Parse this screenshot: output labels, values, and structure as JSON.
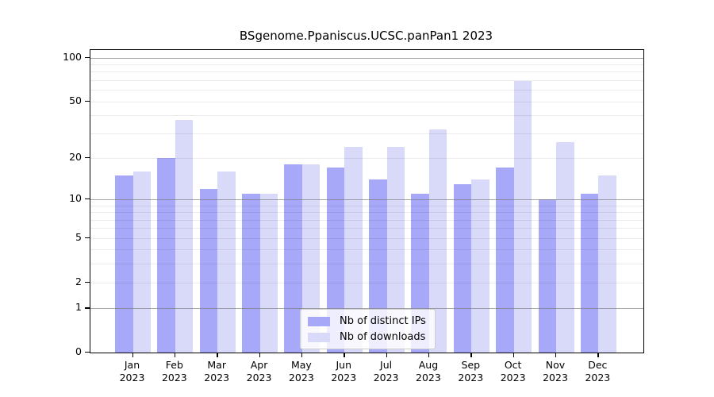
{
  "title": "BSgenome.Ppaniscus.UCSC.panPan1 2023",
  "chart_data": {
    "type": "bar",
    "title": "BSgenome.Ppaniscus.UCSC.panPan1 2023",
    "y_scale": "log1p",
    "categories": [
      "Jan",
      "Feb",
      "Mar",
      "Apr",
      "May",
      "Jun",
      "Jul",
      "Aug",
      "Sep",
      "Oct",
      "Nov",
      "Dec"
    ],
    "year_label": "2023",
    "series": [
      {
        "name": "Nb of distinct IPs",
        "color": "#a8a8f8",
        "values": [
          15,
          20,
          12,
          11,
          18,
          17,
          14,
          11,
          13,
          17,
          10,
          11
        ]
      },
      {
        "name": "Nb of downloads",
        "color": "#d9d9f9",
        "values": [
          16,
          37,
          16,
          11,
          18,
          24,
          24,
          32,
          14,
          69,
          26,
          15
        ]
      }
    ],
    "y_ticks": [
      0,
      1,
      2,
      5,
      10,
      20,
      50,
      100
    ],
    "y_tick_labels": [
      "0",
      "1",
      "2",
      "5",
      "10",
      "20",
      "50",
      "100"
    ],
    "gridlines_major": [
      1,
      10,
      100
    ],
    "gridlines_minor": [
      2,
      3,
      4,
      5,
      6,
      7,
      8,
      9,
      20,
      30,
      40,
      50,
      60,
      70,
      80,
      90
    ],
    "ylim": [
      0,
      100
    ],
    "xlabel": "",
    "ylabel": "",
    "grid": true,
    "legend_position": "bottom-center"
  },
  "colors": {
    "background": "#ffffff",
    "axis": "#000000",
    "grid_major": "#a9a9a9",
    "grid_minor": "#ebebeb",
    "legend_border": "#cccccc"
  }
}
